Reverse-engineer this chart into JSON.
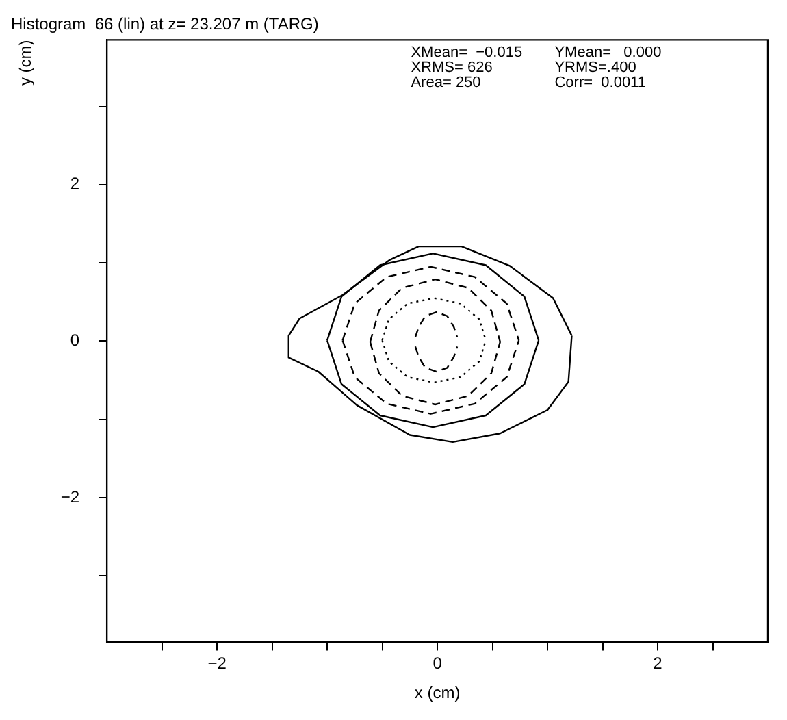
{
  "chart_data": {
    "type": "line",
    "title": "Histogram  66 (lin) at z= 23.207 m (TARG)",
    "xlabel": "x (cm)",
    "ylabel": "y (cm)",
    "xlim": [
      -3,
      3
    ],
    "ylim": [
      -3.85,
      3.85
    ],
    "xticks": [
      {
        "value": -2.5,
        "label": null
      },
      -2,
      {
        "value": -1.5,
        "label": null
      },
      {
        "value": -1,
        "label": null
      },
      {
        "value": -0.5,
        "label": null
      },
      0,
      {
        "value": 0.5,
        "label": null
      },
      {
        "value": 1,
        "label": null
      },
      {
        "value": 1.5,
        "label": null
      },
      2,
      {
        "value": 2.5,
        "label": null
      }
    ],
    "yticks": [
      {
        "value": -3,
        "label": null
      },
      -2,
      {
        "value": -1,
        "label": null
      },
      0,
      {
        "value": 1,
        "label": null
      },
      2,
      {
        "value": 3,
        "label": null
      }
    ],
    "grid": false,
    "legend": false,
    "marker": "none",
    "annotations": [
      "XMean=  −0.015",
      "YMean=   0.000",
      "XRMS= 626",
      "YRMS=.400",
      "Area= 250",
      "Corr=  0.0011"
    ],
    "series": [
      {
        "color": "#000000",
        "line_style": "solid",
        "x": [
          -1.35,
          -1.25,
          -0.86,
          -0.43,
          -0.17,
          0.22,
          0.66,
          1.05,
          1.22
        ],
        "values": [
          0.07,
          0.29,
          0.59,
          1.04,
          1.21,
          1.21,
          0.96,
          0.55,
          0.07
        ]
      },
      {
        "color": "#000000",
        "line_style": "solid",
        "x": [
          -1.35,
          -1.35,
          -1.08,
          -0.73,
          -0.25,
          0.14,
          0.57,
          1.0,
          1.19,
          1.22
        ],
        "values": [
          0.07,
          -0.21,
          -0.39,
          -0.82,
          -1.2,
          -1.29,
          -1.18,
          -0.88,
          -0.52,
          0.07
        ]
      },
      {
        "color": "#000000",
        "line_style": "solid",
        "x": [
          -1.0,
          -0.87,
          -0.52,
          -0.04,
          0.44,
          0.79,
          0.92
        ],
        "values": [
          0.01,
          0.57,
          0.97,
          1.12,
          0.97,
          0.57,
          0.01
        ]
      },
      {
        "color": "#000000",
        "line_style": "solid",
        "x": [
          -1.0,
          -0.87,
          -0.52,
          -0.04,
          0.44,
          0.79,
          0.92
        ],
        "values": [
          0.01,
          -0.55,
          -0.95,
          -1.1,
          -0.95,
          -0.55,
          0.01
        ]
      },
      {
        "color": "#000000",
        "line_style": "dashed",
        "x": [
          -0.86,
          -0.75,
          -0.46,
          -0.06,
          0.34,
          0.63,
          0.74
        ],
        "values": [
          0.01,
          0.48,
          0.82,
          0.95,
          0.82,
          0.48,
          0.01
        ]
      },
      {
        "color": "#000000",
        "line_style": "dashed",
        "x": [
          -0.86,
          -0.75,
          -0.46,
          -0.06,
          0.34,
          0.63,
          0.74
        ],
        "values": [
          0.01,
          -0.46,
          -0.8,
          -0.93,
          -0.8,
          -0.46,
          0.01
        ]
      },
      {
        "color": "#000000",
        "line_style": "dashed",
        "x": [
          -0.61,
          -0.53,
          -0.32,
          -0.02,
          0.28,
          0.49,
          0.57
        ],
        "values": [
          -0.01,
          0.39,
          0.68,
          0.79,
          0.68,
          0.39,
          -0.01
        ]
      },
      {
        "color": "#000000",
        "line_style": "dashed",
        "x": [
          -0.61,
          -0.53,
          -0.32,
          -0.02,
          0.28,
          0.49,
          0.57
        ],
        "values": [
          -0.01,
          -0.41,
          -0.7,
          -0.81,
          -0.7,
          -0.41,
          -0.01
        ]
      },
      {
        "color": "#000000",
        "line_style": "dotted",
        "x": [
          -0.5,
          -0.44,
          -0.27,
          -0.03,
          0.21,
          0.38,
          0.44
        ],
        "values": [
          0.01,
          0.28,
          0.48,
          0.55,
          0.48,
          0.28,
          0.01
        ]
      },
      {
        "color": "#000000",
        "line_style": "dotted",
        "x": [
          -0.5,
          -0.44,
          -0.27,
          -0.03,
          0.21,
          0.38,
          0.44
        ],
        "values": [
          0.01,
          -0.26,
          -0.46,
          -0.53,
          -0.46,
          -0.26,
          0.01
        ]
      },
      {
        "color": "#000000",
        "line_style": "dashed",
        "x": [
          -0.2,
          -0.17,
          -0.11,
          -0.01,
          0.09,
          0.15,
          0.18
        ],
        "values": [
          0.05,
          0.18,
          0.32,
          0.37,
          0.32,
          0.18,
          0.05
        ]
      },
      {
        "color": "#000000",
        "line_style": "dashed",
        "x": [
          -0.2,
          -0.17,
          -0.11,
          -0.01,
          0.09,
          0.15,
          0.18
        ],
        "values": [
          -0.07,
          -0.2,
          -0.34,
          -0.39,
          -0.34,
          -0.2,
          -0.07
        ]
      }
    ]
  }
}
